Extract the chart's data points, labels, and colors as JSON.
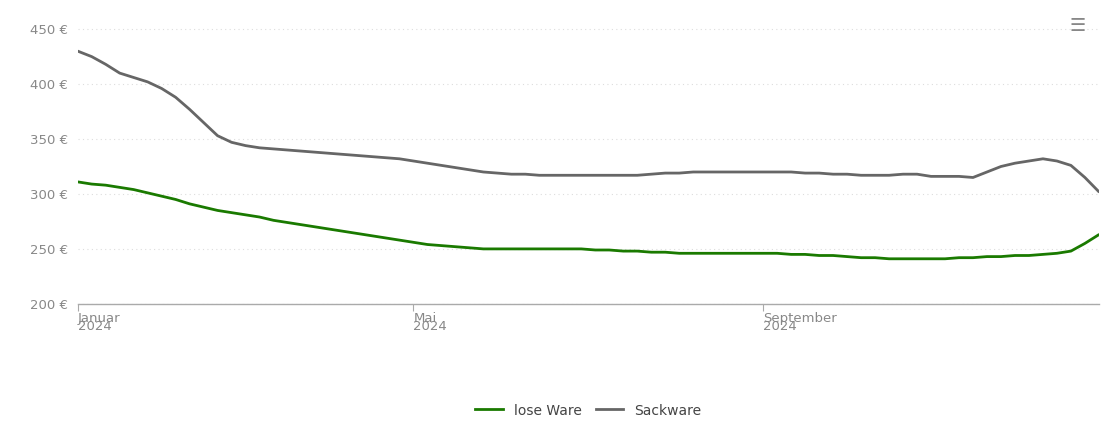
{
  "background_color": "#ffffff",
  "grid_color": "#dddddd",
  "grid_style": "dotted",
  "ylim": [
    200,
    465
  ],
  "yticks": [
    200,
    250,
    300,
    350,
    400,
    450
  ],
  "ytick_labels": [
    "200 €",
    "250 €",
    "300 €",
    "350 €",
    "400 €",
    "450 €"
  ],
  "lose_ware_color": "#1a7a00",
  "sackware_color": "#666666",
  "lose_ware_linewidth": 2.0,
  "sackware_linewidth": 2.0,
  "legend_labels": [
    "lose Ware",
    "Sackware"
  ],
  "xlim": [
    0,
    365
  ],
  "xtick_positions": [
    0,
    120,
    245
  ],
  "xtick_labels_line1": [
    "Januar",
    "Mai",
    "September"
  ],
  "xtick_labels_line2": [
    "2024",
    "2024",
    "2024"
  ],
  "hamburger_color": "#888888",
  "lose_ware_x": [
    0,
    5,
    10,
    15,
    20,
    25,
    30,
    35,
    40,
    45,
    50,
    55,
    60,
    65,
    70,
    75,
    80,
    85,
    90,
    95,
    100,
    105,
    110,
    115,
    120,
    125,
    130,
    135,
    140,
    145,
    150,
    155,
    160,
    165,
    170,
    175,
    180,
    185,
    190,
    195,
    200,
    205,
    210,
    215,
    220,
    225,
    230,
    235,
    240,
    245,
    250,
    255,
    260,
    265,
    270,
    275,
    280,
    285,
    290,
    295,
    300,
    305,
    310,
    315,
    320,
    325,
    330,
    335,
    340,
    345,
    350,
    355,
    360,
    365
  ],
  "lose_ware_y": [
    311,
    309,
    308,
    306,
    304,
    301,
    298,
    295,
    291,
    288,
    285,
    283,
    281,
    279,
    276,
    274,
    272,
    270,
    268,
    266,
    264,
    262,
    260,
    258,
    256,
    254,
    253,
    252,
    251,
    250,
    250,
    250,
    250,
    250,
    250,
    250,
    250,
    249,
    249,
    248,
    248,
    247,
    247,
    246,
    246,
    246,
    246,
    246,
    246,
    246,
    246,
    245,
    245,
    244,
    244,
    243,
    242,
    242,
    241,
    241,
    241,
    241,
    241,
    242,
    242,
    243,
    243,
    244,
    244,
    245,
    246,
    248,
    255,
    263
  ],
  "sackware_x": [
    0,
    5,
    10,
    15,
    20,
    25,
    30,
    35,
    40,
    45,
    50,
    55,
    60,
    65,
    70,
    75,
    80,
    85,
    90,
    95,
    100,
    105,
    110,
    115,
    120,
    125,
    130,
    135,
    140,
    145,
    150,
    155,
    160,
    165,
    170,
    175,
    180,
    185,
    190,
    195,
    200,
    205,
    210,
    215,
    220,
    225,
    230,
    235,
    240,
    245,
    250,
    255,
    260,
    265,
    270,
    275,
    280,
    285,
    290,
    295,
    300,
    305,
    310,
    315,
    320,
    325,
    330,
    335,
    340,
    345,
    350,
    355,
    360,
    365
  ],
  "sackware_y": [
    430,
    425,
    418,
    410,
    406,
    402,
    396,
    388,
    377,
    365,
    353,
    347,
    344,
    342,
    341,
    340,
    339,
    338,
    337,
    336,
    335,
    334,
    333,
    332,
    330,
    328,
    326,
    324,
    322,
    320,
    319,
    318,
    318,
    317,
    317,
    317,
    317,
    317,
    317,
    317,
    317,
    318,
    319,
    319,
    320,
    320,
    320,
    320,
    320,
    320,
    320,
    320,
    319,
    319,
    318,
    318,
    317,
    317,
    317,
    318,
    318,
    316,
    316,
    316,
    315,
    320,
    325,
    328,
    330,
    332,
    330,
    326,
    315,
    302
  ]
}
